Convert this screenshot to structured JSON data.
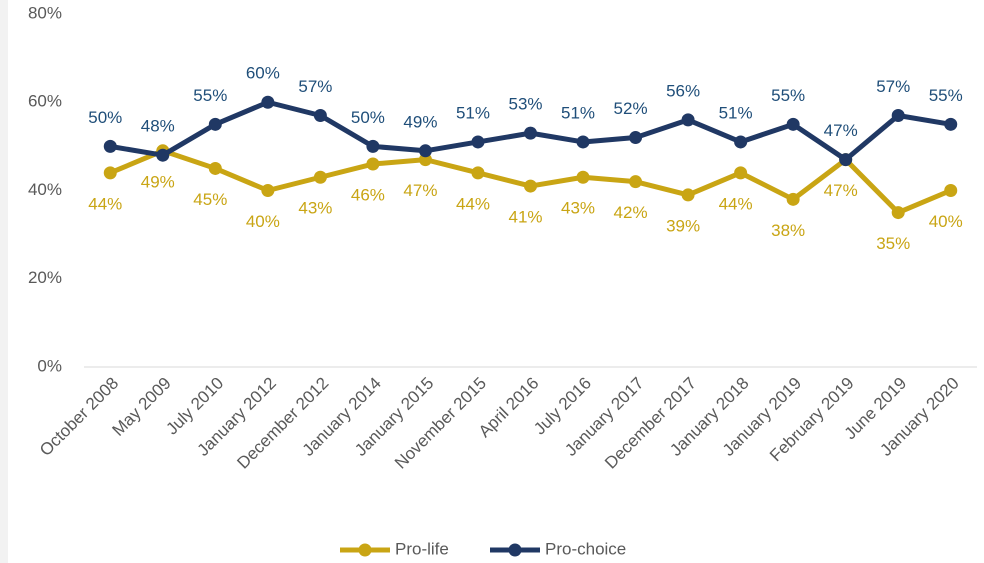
{
  "chart_data": {
    "type": "line",
    "categories": [
      "October 2008",
      "May 2009",
      "July 2010",
      "January 2012",
      "December 2012",
      "January 2014",
      "January 2015",
      "November 2015",
      "April 2016",
      "July 2016",
      "January 2017",
      "December 2017",
      "January 2018",
      "January 2019",
      "February 2019",
      "June 2019",
      "January 2020"
    ],
    "series": [
      {
        "name": "Pro-life",
        "color": "#c9a514",
        "values": [
          44,
          49,
          45,
          40,
          43,
          46,
          47,
          44,
          41,
          43,
          42,
          39,
          44,
          38,
          47,
          35,
          40
        ],
        "value_labels": [
          "44%",
          "49%",
          "45%",
          "40%",
          "43%",
          "46%",
          "47%",
          "44%",
          "41%",
          "43%",
          "42%",
          "39%",
          "44%",
          "38%",
          "47%",
          "35%",
          "40%"
        ]
      },
      {
        "name": "Pro-choice",
        "color": "#203864",
        "values": [
          50,
          48,
          55,
          60,
          57,
          50,
          49,
          51,
          53,
          51,
          52,
          56,
          51,
          55,
          47,
          57,
          55
        ],
        "value_labels": [
          "50%",
          "48%",
          "55%",
          "60%",
          "57%",
          "50%",
          "49%",
          "51%",
          "53%",
          "51%",
          "52%",
          "56%",
          "51%",
          "55%",
          "47%",
          "57%",
          "55%"
        ]
      }
    ],
    "ylim": [
      0,
      80
    ],
    "yticks": [
      {
        "value": 0,
        "label": "0%"
      },
      {
        "value": 20,
        "label": "20%"
      },
      {
        "value": 40,
        "label": "40%"
      },
      {
        "value": 60,
        "label": "60%"
      },
      {
        "value": 80,
        "label": "80%"
      }
    ],
    "legend": "bottom"
  }
}
